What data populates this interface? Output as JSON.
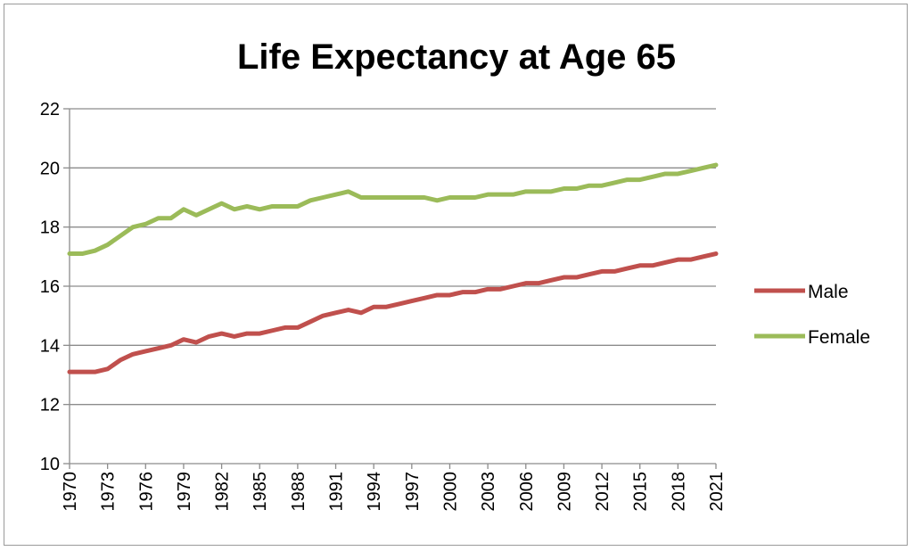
{
  "chart_data": {
    "type": "line",
    "title": "Life Expectancy at Age 65",
    "xlabel": "",
    "ylabel": "",
    "ylim": [
      10,
      22
    ],
    "yticks": [
      "10",
      "12",
      "14",
      "16",
      "18",
      "20",
      "22"
    ],
    "xticks": [
      "1970",
      "1973",
      "1976",
      "1979",
      "1982",
      "1985",
      "1988",
      "1991",
      "1994",
      "1997",
      "2000",
      "2003",
      "2006",
      "2009",
      "2012",
      "2015",
      "2018",
      "2021"
    ],
    "grid": "horizontal",
    "legend_position": "right",
    "x": [
      1970,
      1971,
      1972,
      1973,
      1974,
      1975,
      1976,
      1977,
      1978,
      1979,
      1980,
      1981,
      1982,
      1983,
      1984,
      1985,
      1986,
      1987,
      1988,
      1989,
      1990,
      1991,
      1992,
      1993,
      1994,
      1995,
      1996,
      1997,
      1998,
      1999,
      2000,
      2001,
      2002,
      2003,
      2004,
      2005,
      2006,
      2007,
      2008,
      2009,
      2010,
      2011,
      2012,
      2013,
      2014,
      2015,
      2016,
      2017,
      2018,
      2019,
      2020,
      2021
    ],
    "series": [
      {
        "name": "Male",
        "color": "#c0504d",
        "values": [
          13.1,
          13.1,
          13.1,
          13.2,
          13.5,
          13.7,
          13.8,
          13.9,
          14.0,
          14.2,
          14.1,
          14.3,
          14.4,
          14.3,
          14.4,
          14.4,
          14.5,
          14.6,
          14.6,
          14.8,
          15.0,
          15.1,
          15.2,
          15.1,
          15.3,
          15.3,
          15.4,
          15.5,
          15.6,
          15.7,
          15.7,
          15.8,
          15.8,
          15.9,
          15.9,
          16.0,
          16.1,
          16.1,
          16.2,
          16.3,
          16.3,
          16.4,
          16.5,
          16.5,
          16.6,
          16.7,
          16.7,
          16.8,
          16.9,
          16.9,
          17.0,
          17.1
        ]
      },
      {
        "name": "Female",
        "color": "#9bbb59",
        "values": [
          17.1,
          17.1,
          17.2,
          17.4,
          17.7,
          18.0,
          18.1,
          18.3,
          18.3,
          18.6,
          18.4,
          18.6,
          18.8,
          18.6,
          18.7,
          18.6,
          18.7,
          18.7,
          18.7,
          18.9,
          19.0,
          19.1,
          19.2,
          19.0,
          19.0,
          19.0,
          19.0,
          19.0,
          19.0,
          18.9,
          19.0,
          19.0,
          19.0,
          19.1,
          19.1,
          19.1,
          19.2,
          19.2,
          19.2,
          19.3,
          19.3,
          19.4,
          19.4,
          19.5,
          19.6,
          19.6,
          19.7,
          19.8,
          19.8,
          19.9,
          20.0,
          20.1
        ]
      }
    ]
  }
}
